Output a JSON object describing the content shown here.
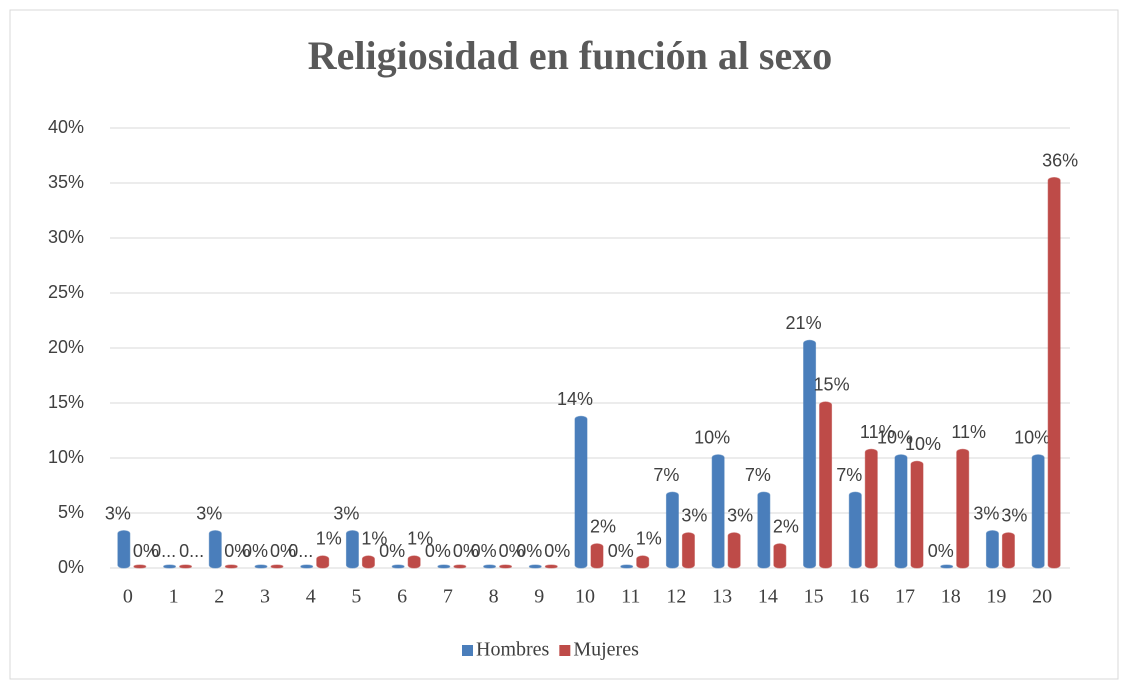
{
  "chart_data": {
    "type": "bar",
    "title": "Religiosidad en función al sexo",
    "categories": [
      "0",
      "1",
      "2",
      "3",
      "4",
      "5",
      "6",
      "7",
      "8",
      "9",
      "10",
      "11",
      "12",
      "13",
      "14",
      "15",
      "16",
      "17",
      "18",
      "19",
      "20"
    ],
    "series": [
      {
        "name": "Hombres",
        "color": "#4a7ebb",
        "values": [
          3.4,
          0,
          3.4,
          0,
          0,
          3.4,
          0,
          0,
          0,
          0,
          13.8,
          0,
          6.9,
          10.3,
          6.9,
          20.7,
          6.9,
          10.3,
          0,
          3.4,
          10.3
        ],
        "value_labels": [
          "3%",
          "0...",
          "3%",
          "0%",
          "0...",
          "3%",
          "0%",
          "0%",
          "0%",
          "0%",
          "14%",
          "0%",
          "7%",
          "10%",
          "7%",
          "21%",
          "7%",
          "10%",
          "0%",
          "3%",
          "10%"
        ]
      },
      {
        "name": "Mujeres",
        "color": "#be4b48",
        "values": [
          0,
          0,
          0,
          0,
          1.1,
          1.1,
          1.1,
          0,
          0,
          0,
          2.2,
          1.1,
          3.2,
          3.2,
          2.2,
          15.1,
          10.8,
          9.7,
          10.8,
          3.2,
          35.5
        ],
        "value_labels": [
          "0%",
          "0...",
          "0%",
          "0%",
          "1%",
          "1%",
          "1%",
          "0%",
          "0%",
          "0%",
          "2%",
          "1%",
          "3%",
          "3%",
          "2%",
          "15%",
          "11%",
          "10%",
          "11%",
          "3%",
          "36%"
        ]
      }
    ],
    "ylim": [
      0,
      40
    ],
    "yticks": [
      {
        "value": 0,
        "label": "0%"
      },
      {
        "value": 5,
        "label": "5%"
      },
      {
        "value": 10,
        "label": "10%"
      },
      {
        "value": 15,
        "label": "15%"
      },
      {
        "value": 20,
        "label": "20%"
      },
      {
        "value": 25,
        "label": "25%"
      },
      {
        "value": 30,
        "label": "30%"
      },
      {
        "value": 35,
        "label": "35%"
      },
      {
        "value": 40,
        "label": "40%"
      }
    ],
    "grid": true,
    "legend": "bottom"
  }
}
